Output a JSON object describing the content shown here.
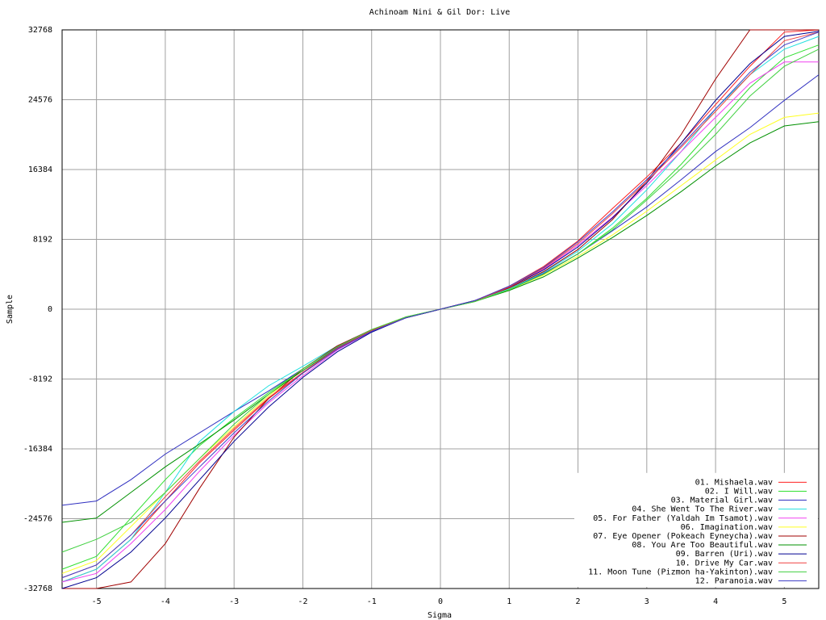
{
  "chart_data": {
    "type": "line",
    "title": "Achinoam Nini & Gil Dor: Live",
    "x_label": "Sigma",
    "y_label": "Sample",
    "xlim": [
      -5.5,
      5.5
    ],
    "ylim": [
      -32768,
      32768
    ],
    "xticks": [
      -5,
      -4,
      -3,
      -2,
      -1,
      0,
      1,
      2,
      3,
      4,
      5
    ],
    "yticks": [
      -32768,
      -24576,
      -16384,
      -8192,
      0,
      8192,
      16384,
      24576,
      32768
    ],
    "grid": true,
    "legend": "lower right",
    "x": [
      -5.5,
      -5,
      -4.5,
      -4,
      -3.5,
      -3,
      -2.5,
      -2,
      -1.5,
      -1,
      -0.5,
      0,
      0.5,
      1,
      1.5,
      2,
      2.5,
      3,
      3.5,
      4,
      4.5,
      5,
      5.5
    ],
    "series": [
      {
        "name": "01. Mishaela.wav",
        "color": "#ff2020",
        "values": [
          -32000,
          -30500,
          -27000,
          -22500,
          -18000,
          -14200,
          -10500,
          -7500,
          -4700,
          -2600,
          -1000,
          0,
          1000,
          2700,
          5000,
          8000,
          11800,
          15500,
          19500,
          24000,
          28500,
          32500,
          32768
        ]
      },
      {
        "name": "02. I Will.wav",
        "color": "#30e030",
        "values": [
          -30500,
          -29000,
          -24500,
          -20000,
          -16000,
          -12800,
          -9800,
          -7000,
          -4500,
          -2500,
          -900,
          0,
          900,
          2300,
          4100,
          6500,
          9500,
          13000,
          17000,
          21500,
          26000,
          29500,
          31000
        ]
      },
      {
        "name": "03. Material Girl.wav",
        "color": "#3030c0",
        "values": [
          -23000,
          -22500,
          -20000,
          -17000,
          -14500,
          -12000,
          -9600,
          -7000,
          -4500,
          -2500,
          -900,
          0,
          1000,
          2400,
          4200,
          6500,
          9200,
          12000,
          15200,
          18500,
          21300,
          24500,
          27500
        ]
      },
      {
        "name": "04. She Went To The River.wav",
        "color": "#20e0e0",
        "values": [
          -32000,
          -30500,
          -27000,
          -21500,
          -15500,
          -12000,
          -9000,
          -6700,
          -4300,
          -2400,
          -900,
          0,
          950,
          2400,
          4300,
          6800,
          10000,
          14000,
          18500,
          23500,
          27500,
          30500,
          32000
        ]
      },
      {
        "name": "05. For Father (Yaldah Im Tsamot).wav",
        "color": "#f040f0",
        "values": [
          -32000,
          -31000,
          -27500,
          -23500,
          -19000,
          -14800,
          -11000,
          -7800,
          -4800,
          -2600,
          -1000,
          0,
          1000,
          2600,
          4700,
          7500,
          10800,
          14500,
          18500,
          22500,
          26500,
          29000,
          29000
        ]
      },
      {
        "name": "06. Imagination.wav",
        "color": "#ffff20",
        "values": [
          -31000,
          -29500,
          -25500,
          -21500,
          -17500,
          -13800,
          -10200,
          -7000,
          -4400,
          -2400,
          -900,
          0,
          900,
          2300,
          4000,
          6200,
          8700,
          11500,
          14500,
          17500,
          20500,
          22500,
          23000
        ]
      },
      {
        "name": "07. Eye Opener (Pokeach Eyneycha).wav",
        "color": "#a00000",
        "values": [
          -32768,
          -32768,
          -32000,
          -27500,
          -21000,
          -15000,
          -10500,
          -7000,
          -4300,
          -2400,
          -1000,
          0,
          1000,
          2500,
          4400,
          7000,
          10500,
          15000,
          20500,
          27000,
          32767,
          32767,
          32767
        ]
      },
      {
        "name": "08. You Are Too Beautiful.wav",
        "color": "#009000",
        "values": [
          -25000,
          -24500,
          -21500,
          -18500,
          -15800,
          -13000,
          -10000,
          -7200,
          -4600,
          -2500,
          -1000,
          0,
          900,
          2200,
          3800,
          6000,
          8400,
          11000,
          13800,
          16800,
          19500,
          21500,
          22000
        ]
      },
      {
        "name": "09. Barren (Uri).wav",
        "color": "#000090",
        "values": [
          -32768,
          -31500,
          -28500,
          -24500,
          -20000,
          -15500,
          -11500,
          -8000,
          -5000,
          -2700,
          -1000,
          0,
          1000,
          2600,
          4600,
          7300,
          10700,
          14800,
          19500,
          24500,
          28800,
          32000,
          32600
        ]
      },
      {
        "name": "10. Drive My Car.wav",
        "color": "#f04040",
        "values": [
          -31500,
          -30000,
          -26500,
          -22000,
          -17800,
          -14000,
          -10400,
          -7400,
          -4600,
          -2500,
          -950,
          0,
          950,
          2600,
          4800,
          7700,
          11200,
          15000,
          19000,
          23200,
          27500,
          31500,
          32500
        ]
      },
      {
        "name": "11. Moon Tune (Pizmon ha-Yakinton).wav",
        "color": "#40d040",
        "values": [
          -28500,
          -27000,
          -25000,
          -21500,
          -17500,
          -13500,
          -10000,
          -7000,
          -4400,
          -2400,
          -900,
          0,
          900,
          2300,
          4100,
          6500,
          9300,
          12800,
          16500,
          20500,
          25000,
          28500,
          30500
        ]
      },
      {
        "name": "12. Paranoia.wav",
        "color": "#4040c8",
        "values": [
          -31500,
          -30000,
          -26500,
          -22500,
          -18500,
          -14500,
          -10800,
          -7500,
          -4700,
          -2600,
          -1000,
          0,
          1000,
          2700,
          4900,
          7900,
          11400,
          15200,
          19200,
          23500,
          27800,
          31000,
          32500
        ]
      }
    ]
  }
}
